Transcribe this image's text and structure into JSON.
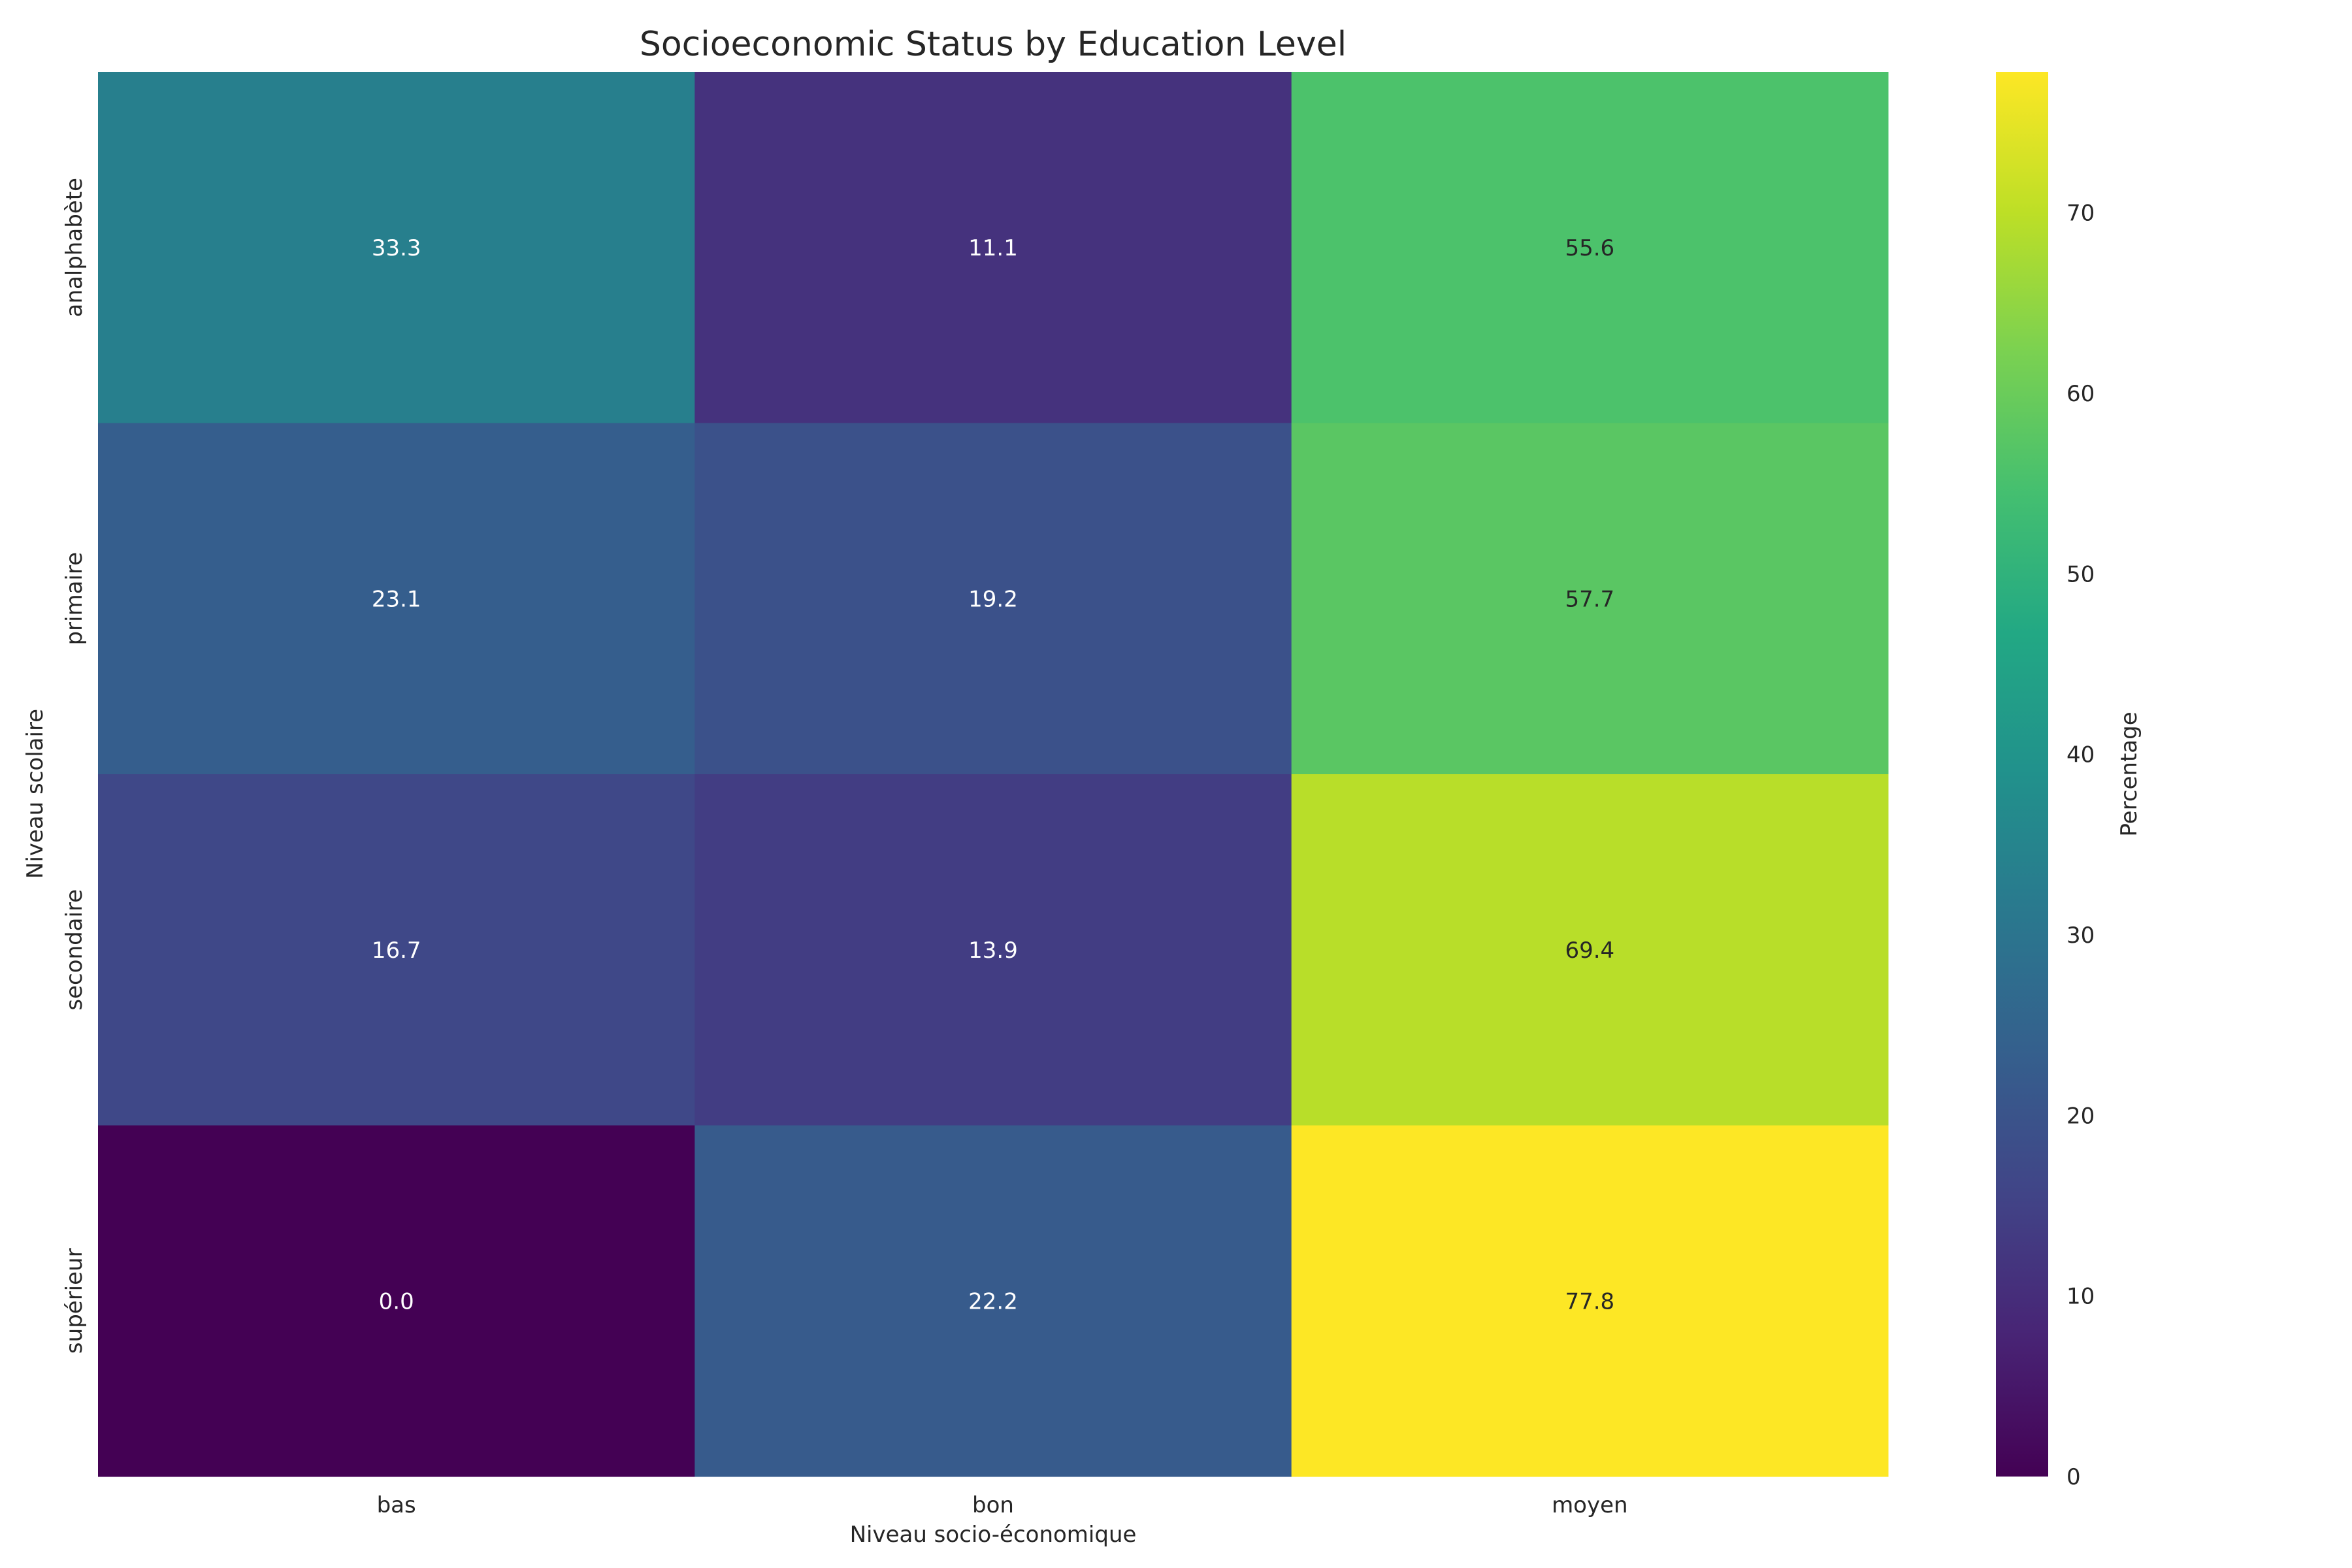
{
  "chart_data": {
    "type": "heatmap",
    "title": "Socioeconomic Status by Education Level",
    "xlabel": "Niveau socio-économique",
    "ylabel": "Niveau scolaire",
    "x_categories": [
      "bas",
      "bon",
      "moyen"
    ],
    "y_categories": [
      "analphabète",
      "primaire",
      "secondaire",
      "supérieur"
    ],
    "values": [
      [
        33.3,
        11.1,
        55.6
      ],
      [
        23.1,
        19.2,
        57.7
      ],
      [
        16.7,
        13.9,
        69.4
      ],
      [
        0.0,
        22.2,
        77.8
      ]
    ],
    "colorbar": {
      "label": "Percentage",
      "range": [
        0,
        77.8
      ],
      "ticks": [
        0,
        10,
        20,
        30,
        40,
        50,
        60,
        70
      ],
      "colormap": "viridis"
    }
  }
}
